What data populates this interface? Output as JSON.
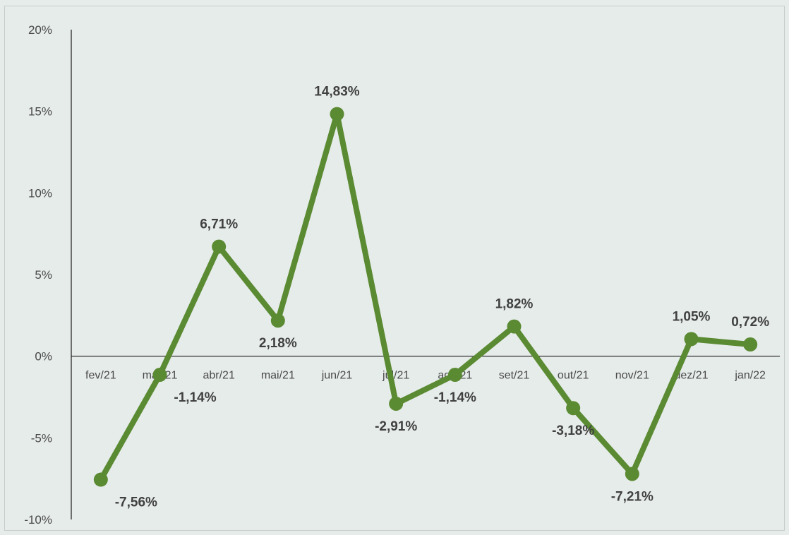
{
  "chart_data": {
    "type": "line",
    "categories": [
      "fev/21",
      "mar/21",
      "abr/21",
      "mai/21",
      "jun/21",
      "jul/21",
      "ago/21",
      "set/21",
      "out/21",
      "nov/21",
      "dez/21",
      "jan/22"
    ],
    "series": [
      {
        "values": [
          -7.56,
          -1.14,
          6.71,
          2.18,
          14.83,
          -2.91,
          -1.14,
          1.82,
          -3.18,
          -7.21,
          1.05,
          0.72
        ],
        "labels": [
          "-7,56%",
          "-1,14%",
          "6,71%",
          "2,18%",
          "14,83%",
          "-2,91%",
          "-1,14%",
          "1,82%",
          "-3,18%",
          "-7,21%",
          "1,05%",
          "0,72%"
        ],
        "color": "#5a8a32"
      }
    ],
    "y_ticks": [
      20,
      15,
      10,
      5,
      0,
      -5,
      -10
    ],
    "y_tick_labels": [
      "20%",
      "15%",
      "10%",
      "5%",
      "0%",
      "-5%",
      "-10%"
    ],
    "ylim": [
      -10,
      20
    ],
    "title": "",
    "xlabel": "",
    "ylabel": "",
    "grid": false,
    "legend": "none"
  }
}
